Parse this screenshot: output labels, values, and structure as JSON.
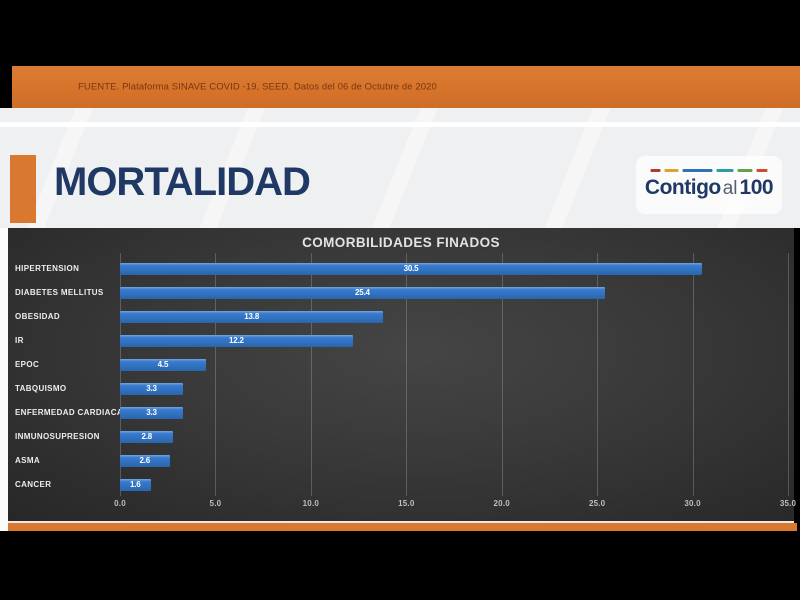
{
  "source_banner": {
    "text": "FUENTE. Plataforma SINAVE COVID -19, SEED. Datos del 06 de Octubre de 2020"
  },
  "header": {
    "title": "MORTALIDAD",
    "logo": {
      "part_bold1": "Contigo",
      "part_light": "al",
      "part_bold2": "100",
      "dashes": [
        {
          "color": "#A93E2B",
          "width": 10
        },
        {
          "color": "#DFA32B",
          "width": 14
        },
        {
          "color": "#2E74B5",
          "width": 30
        },
        {
          "color": "#2E9BA6",
          "width": 17
        },
        {
          "color": "#61A24A",
          "width": 15
        },
        {
          "color": "#C9502E",
          "width": 11
        }
      ]
    }
  },
  "chart_data": {
    "type": "bar",
    "orientation": "horizontal",
    "title": "COMORBILIDADES FINADOS",
    "categories": [
      "HIPERTENSION",
      "DIABETES MELLITUS",
      "OBESIDAD",
      "IR",
      "EPOC",
      "TABQUISMO",
      "ENFERMEDAD CARDIACA",
      "INMUNOSUPRESION",
      "ASMA",
      "CANCER"
    ],
    "values": [
      30.5,
      25.4,
      13.8,
      12.2,
      4.5,
      3.3,
      3.3,
      2.8,
      2.6,
      1.6
    ],
    "value_labels": [
      "30.5",
      "25.4",
      "13.8",
      "12.2",
      "4.5",
      "3.3",
      "3.3",
      "2.8",
      "2.6",
      "1.6"
    ],
    "xlabel": "",
    "ylabel": "",
    "xlim": [
      0,
      35
    ],
    "tick_values": [
      0,
      5,
      10,
      15,
      20,
      25,
      30,
      35
    ],
    "tick_labels": [
      "0.0",
      "5.0",
      "10.0",
      "15.0",
      "20.0",
      "25.0",
      "30.0",
      "35.0"
    ],
    "grid": true,
    "legend_position": "none",
    "bar_color": "#3273C2",
    "plot_background": "#383838",
    "value_label_color": "#FFFFFF"
  },
  "colors": {
    "accent_orange": "#D9782F",
    "title_navy": "#1F3864",
    "source_text_brown": "#7B3510",
    "chart_background_dark": "#383838",
    "bar_blue": "#3273C2",
    "letterbox_black": "#000000"
  }
}
